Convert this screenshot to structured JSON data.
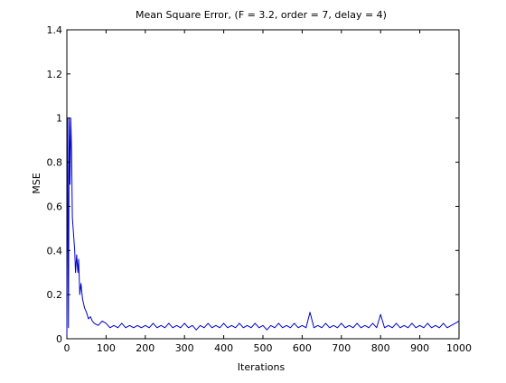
{
  "chart_data": {
    "type": "line",
    "title": "Mean Square Error, (F = 3.2, order = 7, delay = 4)",
    "xlabel": "Iterations",
    "ylabel": "MSE",
    "xlim": [
      0,
      1000
    ],
    "ylim": [
      0,
      1.4
    ],
    "xticks": [
      0,
      100,
      200,
      300,
      400,
      500,
      600,
      700,
      800,
      900,
      1000
    ],
    "xtick_labels": [
      "0",
      "100",
      "200",
      "300",
      "400",
      "500",
      "600",
      "700",
      "800",
      "900",
      "1000"
    ],
    "yticks": [
      0,
      0.2,
      0.4,
      0.6,
      0.8,
      1.0,
      1.2,
      1.4
    ],
    "ytick_labels": [
      "0",
      "0.2",
      "0.4",
      "0.6",
      "0.8",
      "1",
      "1.2",
      "1.4"
    ],
    "grid": false,
    "legend": "none",
    "line_color": "#0000cc",
    "series": [
      {
        "x": [
          0,
          2,
          4,
          6,
          8,
          10,
          12,
          14,
          16,
          18,
          20,
          22,
          25,
          28,
          30,
          33,
          36,
          40,
          45,
          50,
          55,
          60,
          65,
          70,
          80,
          90,
          100,
          110,
          120,
          130,
          140,
          150,
          160,
          170,
          180,
          190,
          200,
          210,
          220,
          230,
          240,
          250,
          260,
          270,
          280,
          290,
          300,
          310,
          320,
          330,
          340,
          350,
          360,
          370,
          380,
          390,
          400,
          410,
          420,
          430,
          440,
          450,
          460,
          470,
          480,
          490,
          500,
          510,
          520,
          530,
          540,
          550,
          560,
          570,
          580,
          590,
          600,
          610,
          620,
          630,
          640,
          650,
          660,
          670,
          680,
          690,
          700,
          710,
          720,
          730,
          740,
          750,
          760,
          770,
          780,
          790,
          800,
          810,
          820,
          830,
          840,
          850,
          860,
          870,
          880,
          890,
          900,
          910,
          920,
          930,
          940,
          950,
          960,
          970,
          980,
          990,
          1000
        ],
        "y": [
          0.02,
          1.0,
          0.05,
          1.0,
          0.7,
          1.0,
          0.85,
          0.55,
          0.5,
          0.45,
          0.4,
          0.3,
          0.38,
          0.3,
          0.36,
          0.2,
          0.25,
          0.18,
          0.14,
          0.12,
          0.09,
          0.1,
          0.08,
          0.07,
          0.06,
          0.08,
          0.07,
          0.05,
          0.06,
          0.05,
          0.07,
          0.05,
          0.06,
          0.05,
          0.06,
          0.05,
          0.06,
          0.05,
          0.07,
          0.05,
          0.06,
          0.05,
          0.07,
          0.05,
          0.06,
          0.05,
          0.07,
          0.05,
          0.06,
          0.04,
          0.06,
          0.05,
          0.07,
          0.05,
          0.06,
          0.05,
          0.07,
          0.05,
          0.06,
          0.05,
          0.07,
          0.05,
          0.06,
          0.05,
          0.07,
          0.05,
          0.06,
          0.04,
          0.06,
          0.05,
          0.07,
          0.05,
          0.06,
          0.05,
          0.07,
          0.05,
          0.06,
          0.05,
          0.12,
          0.05,
          0.06,
          0.05,
          0.07,
          0.05,
          0.06,
          0.05,
          0.07,
          0.05,
          0.06,
          0.05,
          0.07,
          0.05,
          0.06,
          0.05,
          0.07,
          0.05,
          0.11,
          0.05,
          0.06,
          0.05,
          0.07,
          0.05,
          0.06,
          0.05,
          0.07,
          0.05,
          0.06,
          0.05,
          0.07,
          0.05,
          0.06,
          0.05,
          0.07,
          0.05,
          0.06,
          0.07,
          0.08
        ]
      }
    ]
  }
}
